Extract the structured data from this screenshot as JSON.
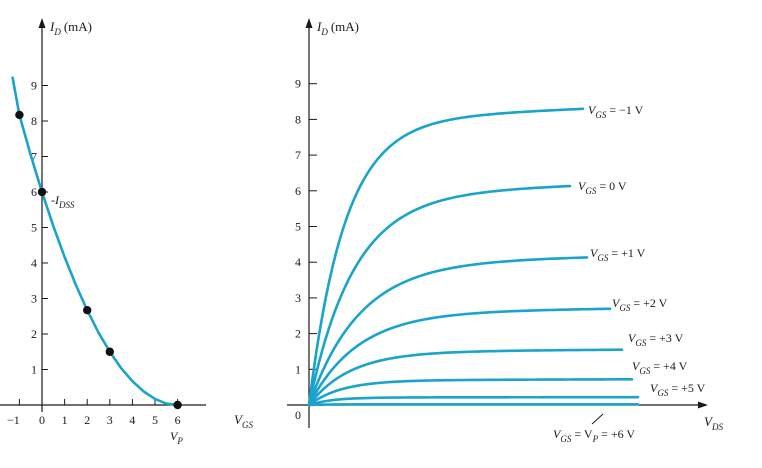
{
  "chart_data": [
    {
      "type": "scatter",
      "title": "",
      "xlabel": "V_GS",
      "ylabel": "I_D (mA)",
      "ylabel_main": "I",
      "ylabel_sub": "D",
      "ylabel_unit": "(mA)",
      "xlabel_main": "V",
      "xlabel_sub": "GS",
      "xlim": [
        -1,
        6
      ],
      "ylim": [
        0,
        9
      ],
      "x_ticks": [
        -1,
        0,
        1,
        2,
        3,
        4,
        5,
        6
      ],
      "x_tick_labels": [
        "−1",
        "0",
        "1",
        "2",
        "3",
        "4",
        "5",
        "6"
      ],
      "y_ticks": [
        1,
        2,
        3,
        4,
        5,
        6,
        7,
        8,
        9
      ],
      "y_tick_labels": [
        "1",
        "2",
        "3",
        "4",
        "5",
        "6",
        "7",
        "8",
        "9"
      ],
      "curve": {
        "name": "",
        "x": [
          -1.3,
          -1.0,
          -0.5,
          0,
          0.5,
          1.0,
          1.5,
          2.0,
          2.5,
          3.0,
          3.5,
          4.0,
          4.5,
          5.0,
          5.5,
          6.0
        ],
        "y": [
          9.22,
          8.17,
          7.04,
          6.0,
          5.04,
          4.17,
          3.38,
          2.67,
          2.04,
          1.5,
          1.04,
          0.67,
          0.38,
          0.17,
          0.04,
          0.0
        ]
      },
      "points": [
        {
          "x": -1,
          "y": 8.17
        },
        {
          "x": 0,
          "y": 6
        },
        {
          "x": 2,
          "y": 2.67
        },
        {
          "x": 3,
          "y": 1.5
        },
        {
          "x": 6,
          "y": 0
        }
      ],
      "annotations": [
        {
          "main": "I",
          "sub": "DSS"
        },
        {
          "main": "V",
          "sub": "P"
        }
      ],
      "grid": false,
      "line_color": "#1aa3cc"
    },
    {
      "type": "line",
      "title": "",
      "xlabel": "V_DS",
      "ylabel": "I_D (mA)",
      "ylabel_main": "I",
      "ylabel_sub": "D",
      "ylabel_unit": "(mA)",
      "xlabel_main": "V",
      "xlabel_sub": "DS",
      "ylim": [
        0,
        9
      ],
      "y_ticks": [
        0,
        1,
        2,
        3,
        4,
        5,
        6,
        7,
        8,
        9
      ],
      "y_tick_labels": [
        "0",
        "1",
        "2",
        "3",
        "4",
        "5",
        "6",
        "7",
        "8",
        "9"
      ],
      "grid": false,
      "line_color": "#1aa3cc",
      "series": [
        {
          "label_main": "V",
          "label_sub": "GS",
          "label_value": "= −1 V",
          "saturation": 8.3,
          "knee": 0.13
        },
        {
          "label_main": "V",
          "label_sub": "GS",
          "label_value": "= 0 V",
          "saturation": 6.15,
          "knee": 0.17
        },
        {
          "label_main": "V",
          "label_sub": "GS",
          "label_value": "= +1 V",
          "saturation": 4.15,
          "knee": 0.18
        },
        {
          "label_main": "V",
          "label_sub": "GS",
          "label_value": "= +2 V",
          "saturation": 2.7,
          "knee": 0.16
        },
        {
          "label_main": "V",
          "label_sub": "GS",
          "label_value": "= +3 V",
          "saturation": 1.55,
          "knee": 0.13
        },
        {
          "label_main": "V",
          "label_sub": "GS",
          "label_value": "= +4 V",
          "saturation": 0.72,
          "knee": 0.1
        },
        {
          "label_main": "V",
          "label_sub": "GS",
          "label_value": "= +5 V",
          "saturation": 0.22,
          "knee": 0.07
        },
        {
          "label_main": "V",
          "label_sub": "GS",
          "label_value": "= V",
          "label_value2": "= +6 V",
          "label_sub2": "P",
          "saturation": 0.02,
          "knee": 0.05
        }
      ]
    }
  ]
}
